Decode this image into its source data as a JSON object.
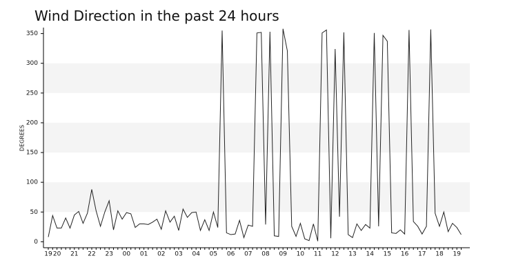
{
  "chart_data": {
    "type": "line",
    "title": "Wind Direction in the past 24 hours",
    "y_label": "DEGREES",
    "categories": [
      "19",
      null,
      "20",
      null,
      null,
      null,
      "21",
      null,
      null,
      null,
      "22",
      null,
      null,
      null,
      "23",
      null,
      null,
      null,
      "00",
      null,
      null,
      null,
      "01",
      null,
      null,
      null,
      "02",
      null,
      null,
      null,
      "03",
      null,
      null,
      null,
      "04",
      null,
      null,
      null,
      "05",
      null,
      null,
      null,
      "06",
      null,
      null,
      null,
      "07",
      null,
      null,
      null,
      "08",
      null,
      null,
      null,
      "09",
      null,
      null,
      null,
      "10",
      null,
      null,
      null,
      "11",
      null,
      null,
      null,
      "12",
      null,
      null,
      null,
      "13",
      null,
      null,
      null,
      "14",
      null,
      null,
      null,
      "15",
      null,
      null,
      null,
      "16",
      null,
      null,
      null,
      "17",
      null,
      null,
      null,
      "18",
      null,
      null,
      null,
      "19",
      null
    ],
    "values": [
      8,
      44,
      23,
      23,
      40,
      23,
      45,
      51,
      31,
      48,
      88,
      52,
      26,
      50,
      69,
      20,
      52,
      38,
      49,
      47,
      24,
      30,
      30,
      29,
      33,
      38,
      21,
      52,
      33,
      43,
      19,
      55,
      41,
      49,
      50,
      19,
      37,
      19,
      50,
      24,
      355,
      15,
      12,
      13,
      36,
      7,
      28,
      26,
      351,
      352,
      29,
      353,
      10,
      9,
      358,
      321,
      26,
      9,
      31,
      5,
      2,
      30,
      1,
      351,
      356,
      6,
      324,
      42,
      352,
      12,
      7,
      30,
      19,
      29,
      23,
      351,
      26,
      347,
      337,
      15,
      14,
      20,
      13,
      356,
      34,
      26,
      13,
      26,
      357,
      48,
      26,
      50,
      17,
      31,
      24,
      12
    ],
    "color": "#222222",
    "ylim": [
      -10,
      360
    ],
    "yticks": [
      0,
      50,
      100,
      150,
      200,
      250,
      300,
      350
    ],
    "bands": true,
    "band_color": "#f4f4f4"
  }
}
